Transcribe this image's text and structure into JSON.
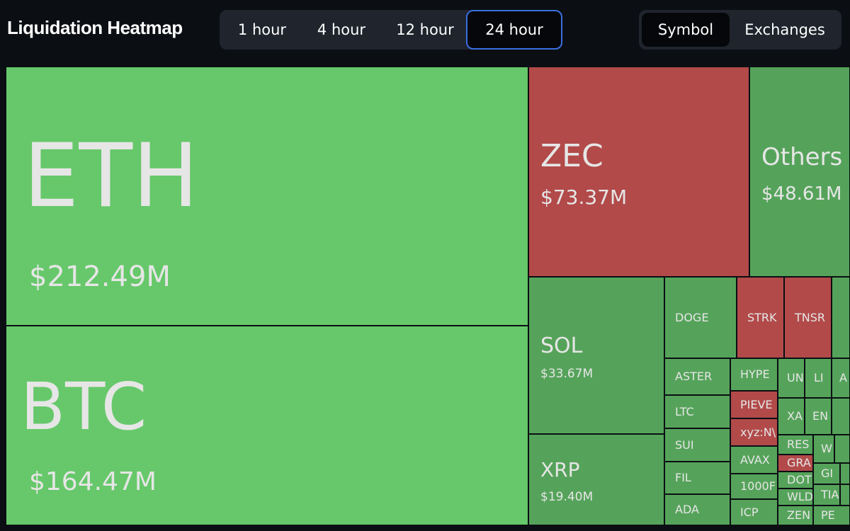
{
  "header": {
    "title": "Liquidation Heatmap",
    "timeframes": [
      "1 hour",
      "4 hour",
      "12 hour",
      "24 hour"
    ],
    "active_timeframe": "24 hour",
    "views": [
      "Symbol",
      "Exchanges"
    ],
    "active_view": "Symbol"
  },
  "colors": {
    "long": "#66c86a",
    "long_dim": "#55a35a",
    "short": "#b24a4a",
    "accent": "#3a6fe0"
  },
  "tiles": {
    "eth": {
      "symbol": "ETH",
      "value": "$212.49M"
    },
    "btc": {
      "symbol": "BTC",
      "value": "$164.47M"
    },
    "zec": {
      "symbol": "ZEC",
      "value": "$73.37M"
    },
    "others": {
      "symbol": "Others",
      "value": "$48.61M"
    },
    "sol": {
      "symbol": "SOL",
      "value": "$33.67M"
    },
    "xrp": {
      "symbol": "XRP",
      "value": "$19.40M"
    },
    "doge": {
      "symbol": "DOGE"
    },
    "strk": {
      "symbol": "STRK"
    },
    "tnsr": {
      "symbol": "TNSR"
    },
    "aster": {
      "symbol": "ASTER"
    },
    "ltc": {
      "symbol": "LTC"
    },
    "sui": {
      "symbol": "SUI"
    },
    "fil": {
      "symbol": "FIL"
    },
    "ada": {
      "symbol": "ADA"
    },
    "hype": {
      "symbol": "HYPE"
    },
    "pieve": {
      "symbol": "PIEVE"
    },
    "xyz": {
      "symbol": "xyz:N\\"
    },
    "avax": {
      "symbol": "AVAX"
    },
    "k1000": {
      "symbol": "1000F"
    },
    "icp": {
      "symbol": "ICP"
    },
    "un": {
      "symbol": "UN"
    },
    "li": {
      "symbol": "LI"
    },
    "a": {
      "symbol": "A"
    },
    "xa": {
      "symbol": "XA"
    },
    "en": {
      "symbol": "EN"
    },
    "res": {
      "symbol": "RES"
    },
    "w": {
      "symbol": "W"
    },
    "gra": {
      "symbol": "GRA"
    },
    "dot": {
      "symbol": "DOT"
    },
    "gi": {
      "symbol": "GI"
    },
    "wld": {
      "symbol": "WLD"
    },
    "ti": {
      "symbol": "TIA"
    },
    "zen": {
      "symbol": "ZEN"
    },
    "pe": {
      "symbol": "PE"
    }
  }
}
